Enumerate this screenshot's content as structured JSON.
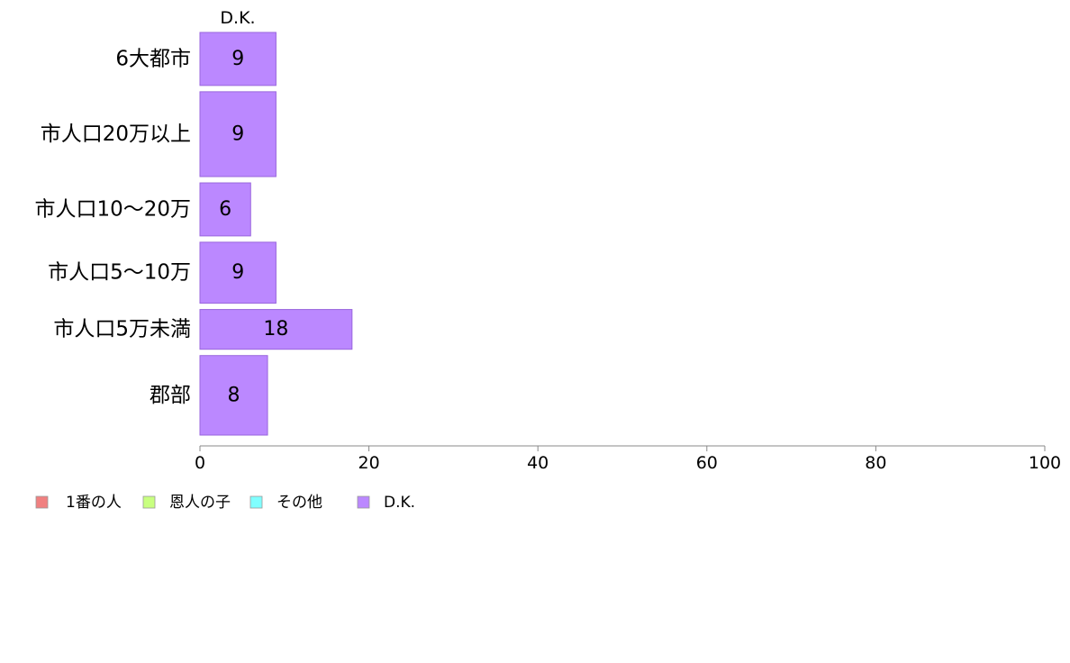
{
  "chart_data": {
    "type": "bar",
    "orientation": "horizontal",
    "stacked": true,
    "categories": [
      "6大都市",
      "市人口20万以上",
      "市人口10〜20万",
      "市人口5〜10万",
      "市人口5万未満",
      "郡部"
    ],
    "series": [
      {
        "name": "1番の人",
        "color": "#f08080",
        "values": [
          null,
          null,
          null,
          null,
          null,
          null
        ]
      },
      {
        "name": "恩人の子",
        "color": "#c8ff80",
        "values": [
          null,
          null,
          null,
          null,
          null,
          null
        ]
      },
      {
        "name": "その他",
        "color": "#80ffff",
        "values": [
          null,
          null,
          null,
          null,
          null,
          null
        ]
      },
      {
        "name": "D.K.",
        "color": "#bb88ff",
        "values": [
          9,
          9,
          6,
          9,
          18,
          8
        ]
      }
    ],
    "bar_weights": [
      1.0,
      1.6,
      1.0,
      1.15,
      0.75,
      1.5
    ],
    "column_header": "D.K.",
    "xlim": [
      0,
      100
    ],
    "xticks": [
      0,
      20,
      40,
      60,
      80,
      100
    ],
    "grid": false,
    "legend_position": "bottom-left"
  }
}
